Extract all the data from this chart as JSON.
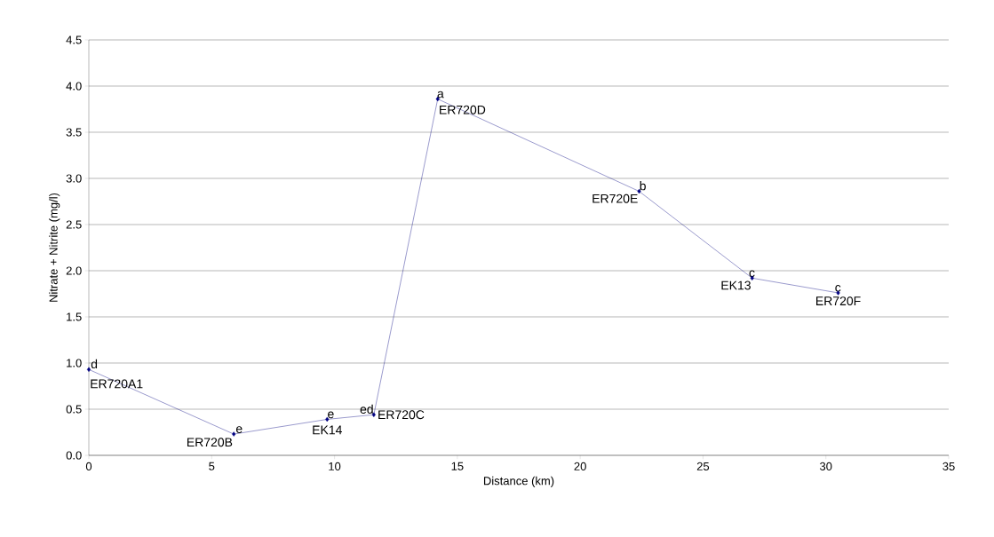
{
  "chart_data": {
    "type": "line",
    "xlabel": "Distance (km)",
    "ylabel": "Nitrate + Nitrite (mg/l)",
    "x": [
      0,
      5.9,
      9.7,
      11.6,
      14.2,
      22.4,
      27.0,
      30.5
    ],
    "series": [
      {
        "color": "#000080",
        "values": [
          0.93,
          0.23,
          0.39,
          0.44,
          3.86,
          2.86,
          1.92,
          1.76
        ]
      }
    ],
    "xlim": [
      0,
      35
    ],
    "xticks": [
      0,
      5,
      10,
      15,
      20,
      25,
      30,
      35
    ],
    "ylim": [
      0,
      4.5
    ],
    "yticks": [
      {
        "value": 0,
        "label": "0.0"
      },
      {
        "value": 0.5,
        "label": "0.5"
      },
      {
        "value": 1,
        "label": "1.0"
      },
      {
        "value": 1.5,
        "label": "1.5"
      },
      {
        "value": 2,
        "label": "2.0"
      },
      {
        "value": 2.5,
        "label": "2.5"
      },
      {
        "value": 3,
        "label": "3.0"
      },
      {
        "value": 3.5,
        "label": "3.5"
      },
      {
        "value": 4,
        "label": "4.0"
      },
      {
        "value": 4.5,
        "label": "4.5"
      }
    ],
    "grid": "y",
    "marker": "diamond",
    "line_style": "solid",
    "annotations": [
      {
        "text": "d",
        "x": 0,
        "y": 0.93
      },
      {
        "text": "ER720A1",
        "x": 0,
        "y": 0.93
      },
      {
        "text": "e",
        "x": 5.9,
        "y": 0.23
      },
      {
        "text": "ER720B",
        "x": 5.9,
        "y": 0.23
      },
      {
        "text": "e",
        "x": 9.7,
        "y": 0.39
      },
      {
        "text": "EK14",
        "x": 9.7,
        "y": 0.39
      },
      {
        "text": "ed",
        "x": 11.6,
        "y": 0.44
      },
      {
        "text": "ER720C",
        "x": 11.6,
        "y": 0.44
      },
      {
        "text": "a",
        "x": 14.2,
        "y": 3.86
      },
      {
        "text": "ER720D",
        "x": 14.2,
        "y": 3.86
      },
      {
        "text": "b",
        "x": 22.4,
        "y": 2.86
      },
      {
        "text": "ER720E",
        "x": 22.4,
        "y": 2.86
      },
      {
        "text": "c",
        "x": 27.0,
        "y": 1.92
      },
      {
        "text": "EK13",
        "x": 27.0,
        "y": 1.92
      },
      {
        "text": "c",
        "x": 30.5,
        "y": 1.76
      },
      {
        "text": "ER720F",
        "x": 30.5,
        "y": 1.76
      }
    ]
  }
}
